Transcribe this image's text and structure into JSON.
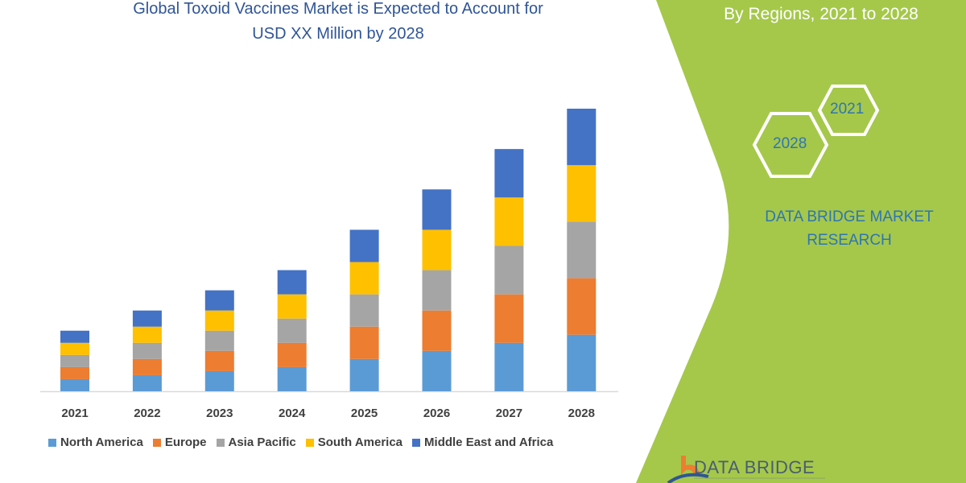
{
  "header": {
    "title_line1": "Global Toxoid Vaccines Market is Expected to Account for",
    "title_line2": "USD XX Million by 2028"
  },
  "side_panel": {
    "subtitle": "By Regions, 2021 to 2028",
    "hex_years": [
      "2021",
      "2028"
    ],
    "brand_line1": "DATA BRIDGE MARKET",
    "brand_line2": "RESEARCH",
    "logo_text": "DATA BRIDGE",
    "panel_color": "#a5c84a"
  },
  "chart_data": {
    "type": "bar",
    "stacked": true,
    "categories": [
      "2021",
      "2022",
      "2023",
      "2024",
      "2025",
      "2026",
      "2027",
      "2028"
    ],
    "series": [
      {
        "name": "North America",
        "color": "#5b9bd5",
        "values": [
          15,
          20,
          25,
          30,
          40,
          50,
          60,
          70
        ]
      },
      {
        "name": "Europe",
        "color": "#ed7d31",
        "values": [
          15,
          20,
          25,
          30,
          40,
          50,
          60,
          70
        ]
      },
      {
        "name": "Asia Pacific",
        "color": "#a5a5a5",
        "values": [
          15,
          20,
          25,
          30,
          40,
          50,
          60,
          70
        ]
      },
      {
        "name": "South America",
        "color": "#ffc000",
        "values": [
          15,
          20,
          25,
          30,
          40,
          50,
          60,
          70
        ]
      },
      {
        "name": "Middle East and Africa",
        "color": "#4472c4",
        "values": [
          15,
          20,
          25,
          30,
          40,
          50,
          60,
          70
        ]
      }
    ],
    "ylim": [
      0,
      350
    ],
    "grid": false,
    "legend": "bottom",
    "y_axis_shown": false
  }
}
